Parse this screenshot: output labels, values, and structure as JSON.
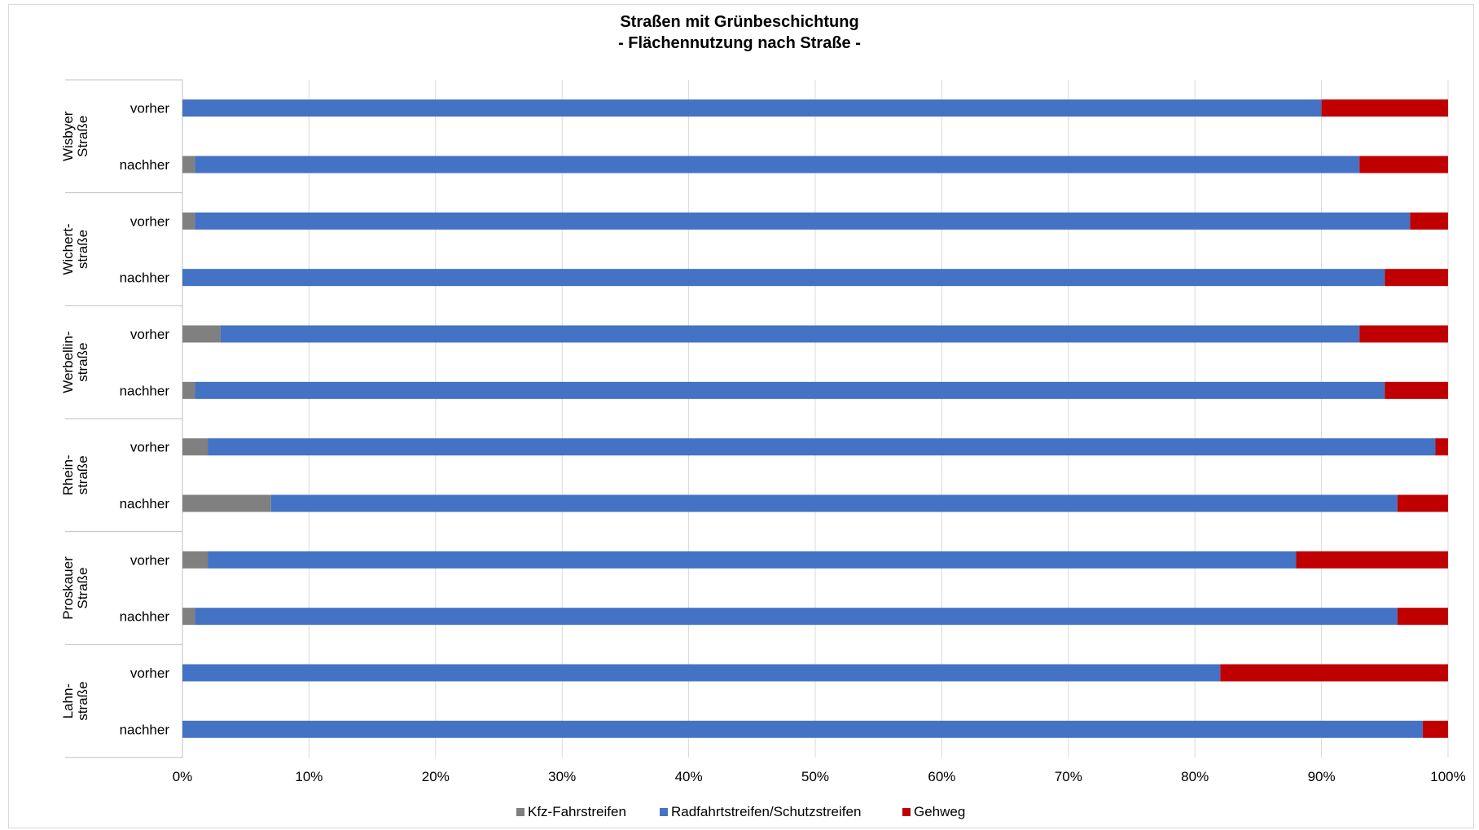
{
  "chart_data": {
    "type": "bar",
    "orientation": "horizontal",
    "stacked": "percent",
    "title": "Straßen mit Grünbeschichtung",
    "subtitle": "- Flächennutzung nach Straße -",
    "groups": [
      {
        "name": [
          "Wisbyer",
          "Straße"
        ],
        "bars": [
          {
            "label": "vorher",
            "values": [
              0,
              90,
              10
            ]
          },
          {
            "label": "nachher",
            "values": [
              1,
              92,
              7
            ]
          }
        ]
      },
      {
        "name": [
          "Wichert-",
          "straße"
        ],
        "bars": [
          {
            "label": "vorher",
            "values": [
              1,
              96,
              3
            ]
          },
          {
            "label": "nachher",
            "values": [
              0,
              95,
              5
            ]
          }
        ]
      },
      {
        "name": [
          "Werbellin-",
          "straße"
        ],
        "bars": [
          {
            "label": "vorher",
            "values": [
              3,
              90,
              7
            ]
          },
          {
            "label": "nachher",
            "values": [
              1,
              94,
              5
            ]
          }
        ]
      },
      {
        "name": [
          "Rhein-",
          "straße"
        ],
        "bars": [
          {
            "label": "vorher",
            "values": [
              2,
              97,
              1
            ]
          },
          {
            "label": "nachher",
            "values": [
              7,
              89,
              4
            ]
          }
        ]
      },
      {
        "name": [
          "Proskauer",
          "Straße"
        ],
        "bars": [
          {
            "label": "vorher",
            "values": [
              2,
              86,
              12
            ]
          },
          {
            "label": "nachher",
            "values": [
              1,
              95,
              4
            ]
          }
        ]
      },
      {
        "name": [
          "Lahn-",
          "straße"
        ],
        "bars": [
          {
            "label": "vorher",
            "values": [
              0,
              82,
              18
            ]
          },
          {
            "label": "nachher",
            "values": [
              0,
              98,
              2
            ]
          }
        ]
      }
    ],
    "series": [
      {
        "name": "Kfz-Fahrstreifen",
        "color": "#808080"
      },
      {
        "name": "Radfahrtstreifen/Schutzstreifen",
        "color": "#4472c4"
      },
      {
        "name": "Gehweg",
        "color": "#c00000"
      }
    ],
    "x_ticks": [
      "0%",
      "10%",
      "20%",
      "30%",
      "40%",
      "50%",
      "60%",
      "70%",
      "80%",
      "90%",
      "100%"
    ],
    "xlim": [
      0,
      100
    ],
    "grid": true,
    "legend_position": "bottom"
  }
}
